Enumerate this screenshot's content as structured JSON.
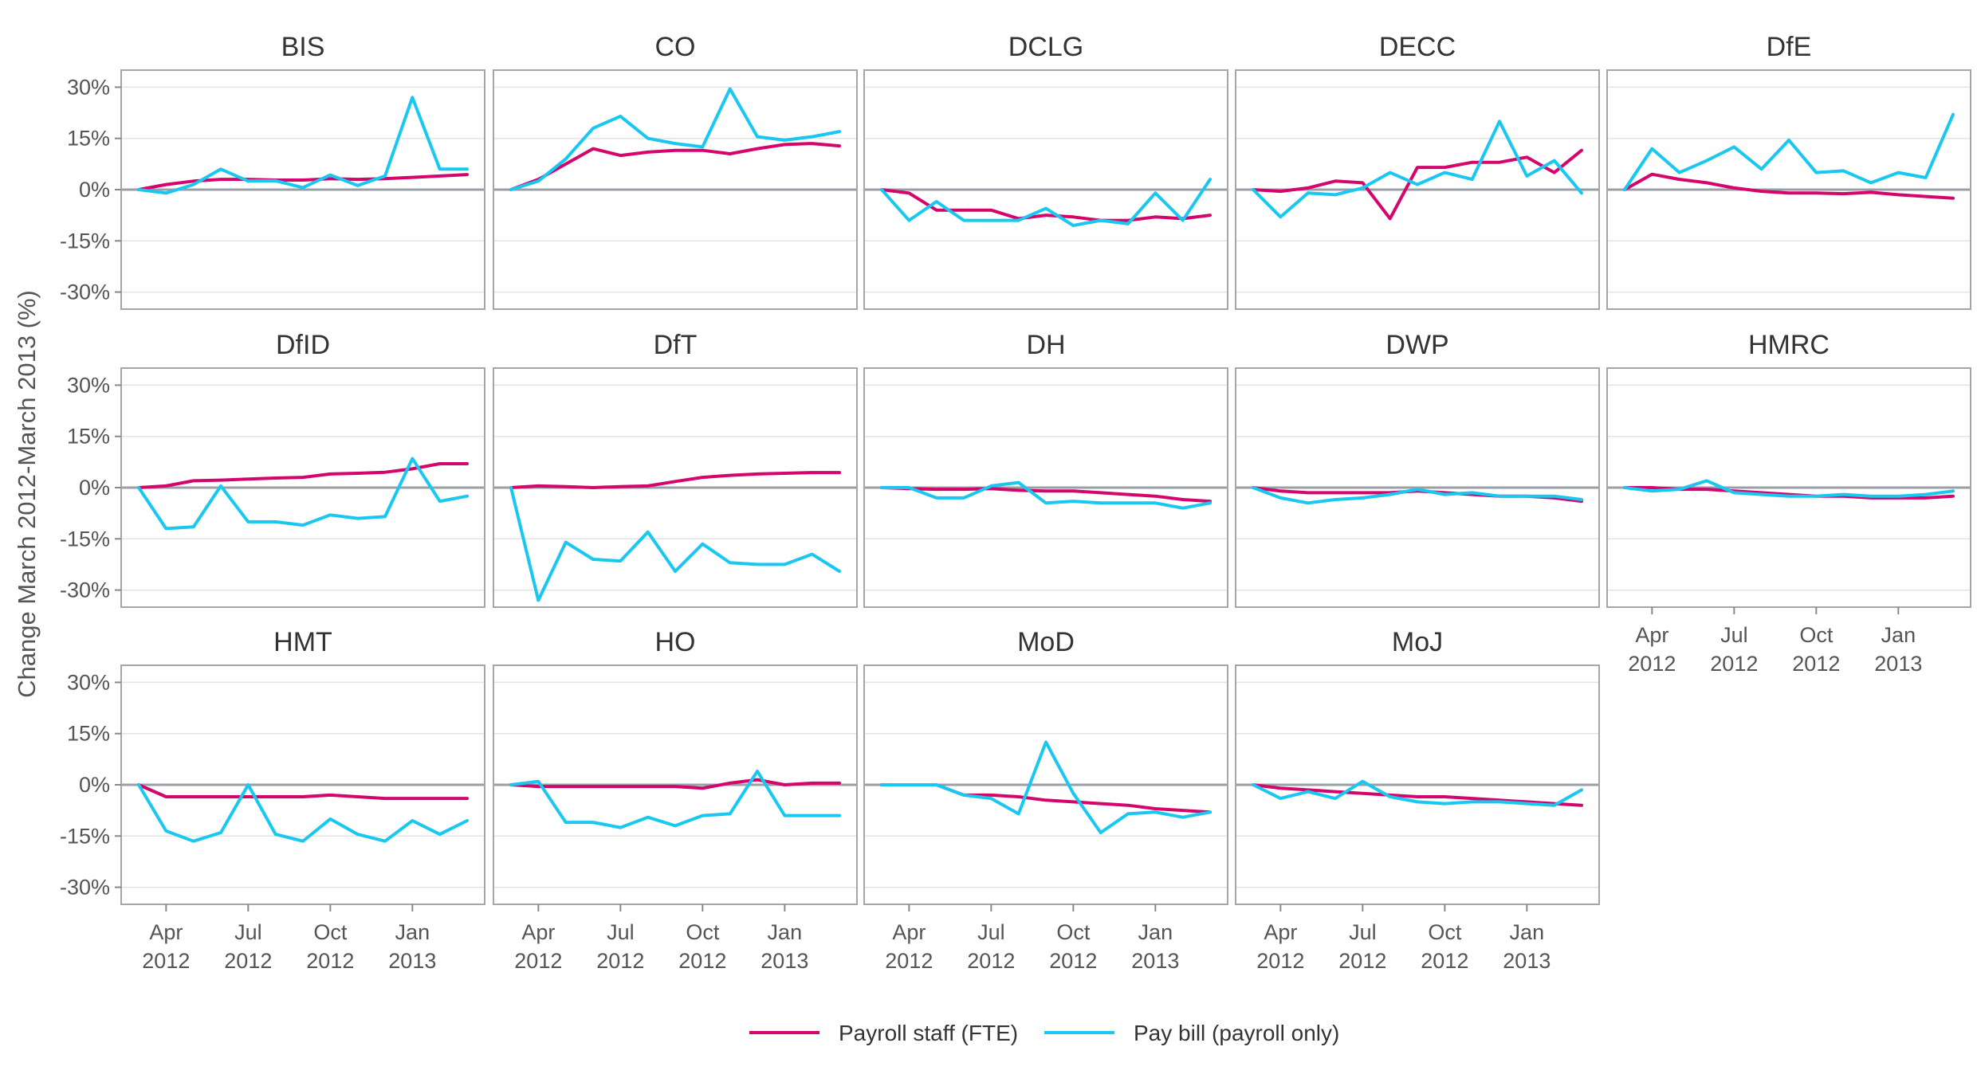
{
  "chart_data": {
    "type": "line",
    "ylabel": "Change March 2012-March 2013 (%)",
    "ylim": [
      -35,
      35
    ],
    "yticks": [
      30,
      15,
      0,
      -15,
      -30
    ],
    "ytick_labels": [
      "30%",
      "15%",
      "0%",
      "-15%",
      "-30%"
    ],
    "xticks": [
      {
        "month": 1,
        "label": [
          "Apr",
          "2012"
        ]
      },
      {
        "month": 4,
        "label": [
          "Jul",
          "2012"
        ]
      },
      {
        "month": 7,
        "label": [
          "Oct",
          "2012"
        ]
      },
      {
        "month": 10,
        "label": [
          "Jan",
          "2013"
        ]
      }
    ],
    "x_months": [
      "Mar 2012",
      "Apr 2012",
      "May 2012",
      "Jun 2012",
      "Jul 2012",
      "Aug 2012",
      "Sep 2012",
      "Oct 2012",
      "Nov 2012",
      "Dec 2012",
      "Jan 2013",
      "Feb 2013",
      "Mar 2013"
    ],
    "series_names": [
      "Payroll staff (FTE)",
      "Pay bill (payroll only)"
    ],
    "colors": {
      "staff": "#d4066d",
      "paybill": "#19c8f0",
      "zero_line": "#9a9fa6",
      "grid": "#e3e3e3",
      "frame": "#a6a6a6"
    },
    "legend_position": "bottom",
    "grid": true,
    "panels": [
      {
        "name": "BIS",
        "staff": [
          0,
          1.5,
          2.5,
          3,
          3,
          2.8,
          2.8,
          3.2,
          3,
          3.2,
          3.6,
          4,
          4.4
        ],
        "paybill": [
          0,
          -1,
          1.5,
          6,
          2.5,
          2.6,
          0.6,
          4.3,
          1.2,
          4,
          27,
          6,
          6
        ]
      },
      {
        "name": "CO",
        "staff": [
          0,
          3,
          7.5,
          12,
          10,
          11,
          11.5,
          11.5,
          10.5,
          12,
          13.2,
          13.5,
          12.8
        ],
        "paybill": [
          0,
          2.5,
          9,
          18,
          21.5,
          15,
          13.5,
          12.5,
          29.5,
          15.5,
          14.5,
          15.5,
          17
        ]
      },
      {
        "name": "DCLG",
        "staff": [
          0,
          -1,
          -6,
          -6,
          -6,
          -8.5,
          -7.5,
          -8,
          -9,
          -9,
          -8,
          -8.5,
          -7.5
        ],
        "paybill": [
          0,
          -9,
          -3.5,
          -9,
          -9,
          -9,
          -5.5,
          -10.5,
          -9,
          -10,
          -1,
          -9,
          3
        ]
      },
      {
        "name": "DECC",
        "staff": [
          0,
          -0.5,
          0.5,
          2.5,
          2,
          -8.5,
          6.5,
          6.5,
          8,
          8,
          9.5,
          5,
          11.5
        ],
        "paybill": [
          0,
          -8,
          -1,
          -1.5,
          0.5,
          5,
          1.5,
          5,
          3,
          20,
          4,
          8.5,
          -1
        ]
      },
      {
        "name": "DfE",
        "staff": [
          0,
          4.5,
          3,
          2,
          0.5,
          -0.5,
          -1,
          -1,
          -1.2,
          -0.8,
          -1.5,
          -2,
          -2.5
        ],
        "paybill": [
          0,
          12,
          5,
          8.5,
          12.5,
          6,
          14.5,
          5,
          5.5,
          2,
          5,
          3.5,
          22
        ]
      },
      {
        "name": "DfID",
        "staff": [
          0,
          0.5,
          2,
          2.2,
          2.5,
          2.8,
          3,
          4,
          4.2,
          4.5,
          5.5,
          7,
          7
        ],
        "paybill": [
          0,
          -12,
          -11.5,
          0.5,
          -10,
          -10,
          -11,
          -8,
          -9,
          -8.5,
          8.5,
          -4,
          -2.5
        ]
      },
      {
        "name": "DfT",
        "staff": [
          0,
          0.5,
          0.3,
          0,
          0.3,
          0.5,
          1.8,
          3,
          3.6,
          4,
          4.2,
          4.4,
          4.4
        ],
        "paybill": [
          0,
          -33,
          -16,
          -21,
          -21.5,
          -13,
          -24.5,
          -16.5,
          -22,
          -22.5,
          -22.5,
          -19.5,
          -24.5
        ]
      },
      {
        "name": "DH",
        "staff": [
          0,
          -0.3,
          -0.5,
          -0.5,
          -0.3,
          -0.8,
          -1,
          -1,
          -1.5,
          -2,
          -2.5,
          -3.5,
          -4
        ],
        "paybill": [
          0,
          0,
          -3,
          -3,
          0.5,
          1.5,
          -4.5,
          -4,
          -4.5,
          -4.5,
          -4.5,
          -6,
          -4.5
        ]
      },
      {
        "name": "DWP",
        "staff": [
          0,
          -1,
          -1.5,
          -1.5,
          -1.5,
          -1.5,
          -1,
          -1.5,
          -2,
          -2.5,
          -2.5,
          -3,
          -4
        ],
        "paybill": [
          0,
          -3,
          -4.5,
          -3.5,
          -3,
          -2,
          -0.5,
          -2,
          -1.5,
          -2.5,
          -2.5,
          -2.5,
          -3.5
        ]
      },
      {
        "name": "HMRC",
        "staff": [
          0,
          0,
          -0.5,
          -0.5,
          -1,
          -1.5,
          -2,
          -2.5,
          -2.5,
          -3,
          -3,
          -3,
          -2.5
        ],
        "paybill": [
          0,
          -1,
          -0.5,
          2,
          -1.5,
          -2,
          -2.5,
          -2.5,
          -2,
          -2.5,
          -2.5,
          -2,
          -1
        ]
      },
      {
        "name": "HMT",
        "staff": [
          0,
          -3.5,
          -3.5,
          -3.5,
          -3.5,
          -3.5,
          -3.5,
          -3,
          -3.5,
          -4,
          -4,
          -4,
          -4
        ],
        "paybill": [
          0,
          -13.5,
          -16.5,
          -14,
          0,
          -14.5,
          -16.5,
          -10,
          -14.5,
          -16.5,
          -10.5,
          -14.5,
          -10.5
        ]
      },
      {
        "name": "HO",
        "staff": [
          0,
          -0.5,
          -0.5,
          -0.5,
          -0.5,
          -0.5,
          -0.5,
          -1,
          0.5,
          1.5,
          0,
          0.5,
          0.5
        ],
        "paybill": [
          0,
          1,
          -11,
          -11,
          -12.5,
          -9.5,
          -12,
          -9,
          -8.5,
          4,
          -9,
          -9,
          -9
        ]
      },
      {
        "name": "MoD",
        "staff": [
          0,
          0,
          0,
          -3,
          -3,
          -3.5,
          -4.5,
          -5,
          -5.5,
          -6,
          -7,
          -7.5,
          -8
        ],
        "paybill": [
          0,
          0,
          0,
          -3,
          -4,
          -8.5,
          12.5,
          -2.5,
          -14,
          -8.5,
          -8,
          -9.5,
          -8
        ]
      },
      {
        "name": "MoJ",
        "staff": [
          0,
          -1,
          -1.5,
          -2,
          -2.5,
          -3,
          -3.5,
          -3.5,
          -4,
          -4.5,
          -5,
          -5.5,
          -6
        ],
        "paybill": [
          0,
          -4,
          -2,
          -4,
          1,
          -3.5,
          -5,
          -5.5,
          -5,
          -5,
          -5.5,
          -6,
          -1.5
        ]
      }
    ]
  }
}
